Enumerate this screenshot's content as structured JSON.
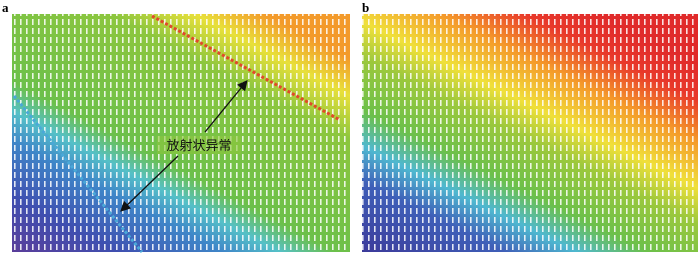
{
  "panels": [
    {
      "label": "a",
      "annotation": "放射状异常"
    },
    {
      "label": "b"
    }
  ]
}
